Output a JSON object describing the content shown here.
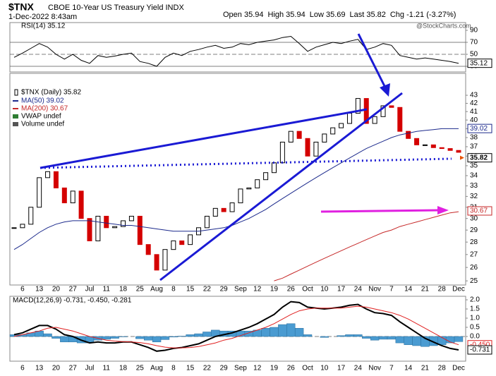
{
  "header": {
    "symbol": "$TNX",
    "name": "CBOE 10-Year US Treasury Yield INDX",
    "date": "1-Dec-2022 8:43am",
    "quote": [
      "Open 35.94",
      "High 35.94",
      "Low 35.69",
      "Last 35.82",
      "Chg -1.21 (-3.27%)"
    ],
    "source": "@StockCharts.com"
  },
  "chart_data": [
    {
      "type": "line",
      "title": "RSI(14) 35.12",
      "ylim": [
        20,
        100
      ],
      "yticks": [
        90,
        70,
        50,
        30
      ],
      "levels": [
        {
          "value": 70
        },
        {
          "value": 50,
          "dash": true
        },
        {
          "value": 30
        }
      ],
      "markers": [
        {
          "value": 35.12,
          "color": "#000"
        }
      ],
      "series": [
        {
          "name": "RSI",
          "color": "#000",
          "values": [
            45,
            52,
            60,
            68,
            62,
            50,
            42,
            50,
            40,
            35,
            48,
            45,
            47,
            50,
            52,
            38,
            35,
            30,
            45,
            52,
            48,
            55,
            58,
            62,
            65,
            60,
            62,
            68,
            66,
            70,
            72,
            74,
            78,
            80,
            68,
            55,
            62,
            66,
            70,
            68,
            72,
            75,
            58,
            62,
            68,
            65,
            48,
            45,
            42,
            44,
            42,
            40,
            38,
            35
          ]
        }
      ]
    },
    {
      "type": "candlestick",
      "title": "$TNX (Daily) 35.82",
      "log_scale": true,
      "ylim": [
        24.7,
        43.9
      ],
      "yticks": [
        25,
        26,
        27,
        28,
        29,
        30,
        31,
        32,
        33,
        34,
        35,
        36,
        37,
        38,
        39,
        40,
        41,
        42,
        43
      ],
      "categories": [
        null,
        "6",
        null,
        "13",
        null,
        "20",
        null,
        "27",
        null,
        "Jul",
        null,
        "11",
        null,
        "18",
        null,
        "25",
        null,
        "Aug",
        null,
        "8",
        null,
        "15",
        null,
        "22",
        null,
        "29",
        null,
        "Sep",
        null,
        "12",
        null,
        "19",
        null,
        "26",
        null,
        "Oct",
        null,
        "10",
        null,
        "17",
        null,
        "24",
        null,
        "Nov",
        null,
        "7",
        null,
        "14",
        null,
        "21",
        null,
        "28",
        null,
        "Dec"
      ],
      "values": [
        29.2,
        29.5,
        31.0,
        33.8,
        34.4,
        32.8,
        31.4,
        32.5,
        30.0,
        28.1,
        30.2,
        29.2,
        29.3,
        29.8,
        30.2,
        27.8,
        27.0,
        25.8,
        27.4,
        28.1,
        27.8,
        28.6,
        29.2,
        30.2,
        30.9,
        30.6,
        31.4,
        32.7,
        32.8,
        33.6,
        34.3,
        35.3,
        37.5,
        38.7,
        37.9,
        36.0,
        37.5,
        38.4,
        39.1,
        39.6,
        40.8,
        42.6,
        39.6,
        40.4,
        41.7,
        41.5,
        38.7,
        37.9,
        37.2,
        37.2,
        36.9,
        36.8,
        36.6,
        36.4
      ],
      "up_color": "#000",
      "down_color": "#d40000",
      "series": [
        {
          "name": "MA(50) 39.02",
          "color": "#1c2a8c",
          "values": [
            27.4,
            27.8,
            28.3,
            28.8,
            29.2,
            29.5,
            29.7,
            29.8,
            29.8,
            29.8,
            29.7,
            29.6,
            29.5,
            29.4,
            29.4,
            29.3,
            29.2,
            29.1,
            29.0,
            28.9,
            28.9,
            28.9,
            28.9,
            29.0,
            29.1,
            29.2,
            29.4,
            29.7,
            30.0,
            30.4,
            30.8,
            31.3,
            31.8,
            32.3,
            32.8,
            33.3,
            33.8,
            34.3,
            34.8,
            35.3,
            35.8,
            36.3,
            36.8,
            37.2,
            37.6,
            38.0,
            38.3,
            38.5,
            38.7,
            38.8,
            38.9,
            39.0,
            39.0,
            39.0
          ]
        },
        {
          "name": "MA(200) 30.67",
          "color": "#c62828",
          "values": [
            null,
            null,
            null,
            null,
            null,
            null,
            null,
            null,
            null,
            null,
            null,
            null,
            null,
            null,
            null,
            null,
            null,
            null,
            null,
            null,
            null,
            null,
            null,
            null,
            null,
            null,
            null,
            null,
            null,
            null,
            null,
            25.0,
            25.2,
            25.5,
            25.8,
            26.1,
            26.4,
            26.7,
            27.0,
            27.3,
            27.6,
            27.9,
            28.2,
            28.5,
            28.8,
            29.0,
            29.3,
            29.5,
            29.7,
            29.9,
            30.1,
            30.3,
            30.5,
            30.6
          ]
        }
      ],
      "legend_extra": [
        {
          "name": "VWAP undef",
          "color": "#2e7d32"
        },
        {
          "name": "Volume undef",
          "color": "#555"
        }
      ],
      "markers": [
        {
          "value": 39.02,
          "color": "#1c2a8c"
        },
        {
          "value": 35.82,
          "color": "#000"
        },
        {
          "value": 30.67,
          "color": "#c62828"
        }
      ]
    },
    {
      "type": "macd",
      "title": "MACD(12,26,9) -0.731, -0.450, -0.281",
      "ylim": [
        -1.25,
        2.1
      ],
      "yticks": [
        {
          "value": 2.0,
          "label": "2.0"
        },
        {
          "value": 1.5,
          "label": "1.5"
        },
        {
          "value": 1.0,
          "label": "1.0"
        },
        {
          "value": 0.5,
          "label": "0.5"
        },
        {
          "value": 0,
          "label": "0.0"
        }
      ],
      "levels": [
        {
          "value": 0,
          "dash": true
        }
      ],
      "categories": [
        null,
        "6",
        null,
        "13",
        null,
        "20",
        null,
        "27",
        null,
        "Jul",
        null,
        "11",
        null,
        "18",
        null,
        "25",
        null,
        "Aug",
        null,
        "8",
        null,
        "15",
        null,
        "22",
        null,
        "29",
        null,
        "Sep",
        null,
        "12",
        null,
        "19",
        null,
        "26",
        null,
        "Oct",
        null,
        "10",
        null,
        "17",
        null,
        "24",
        null,
        "Nov",
        null,
        "7",
        null,
        "14",
        null,
        "21",
        null,
        "28",
        null,
        "Dec"
      ],
      "histogram": {
        "color": "#4a9bd1",
        "values": [
          0.1,
          0.1,
          0.2,
          0.3,
          0.15,
          -0.1,
          -0.3,
          -0.3,
          -0.35,
          -0.35,
          -0.2,
          -0.15,
          -0.1,
          -0.02,
          0.0,
          -0.12,
          -0.2,
          -0.3,
          -0.17,
          -0.03,
          0.02,
          0.1,
          0.15,
          0.25,
          0.35,
          0.3,
          0.3,
          0.3,
          0.3,
          0.35,
          0.45,
          0.5,
          0.65,
          0.7,
          0.45,
          0.1,
          0.0,
          -0.05,
          0.0,
          0.05,
          0.1,
          0.1,
          -0.1,
          -0.2,
          -0.15,
          -0.15,
          -0.35,
          -0.45,
          -0.5,
          -0.55,
          -0.5,
          -0.45,
          -0.35,
          -0.28
        ]
      },
      "series": [
        {
          "name": "MACD",
          "color": "#000",
          "values": [
            0.1,
            0.2,
            0.4,
            0.6,
            0.6,
            0.4,
            0.1,
            0.0,
            -0.2,
            -0.35,
            -0.3,
            -0.35,
            -0.35,
            -0.3,
            -0.3,
            -0.45,
            -0.6,
            -0.8,
            -0.75,
            -0.65,
            -0.6,
            -0.5,
            -0.4,
            -0.2,
            0.0,
            0.1,
            0.2,
            0.35,
            0.5,
            0.7,
            0.95,
            1.2,
            1.6,
            1.9,
            1.85,
            1.6,
            1.55,
            1.5,
            1.55,
            1.6,
            1.7,
            1.75,
            1.5,
            1.3,
            1.25,
            1.15,
            0.8,
            0.5,
            0.2,
            -0.1,
            -0.3,
            -0.5,
            -0.65,
            -0.73
          ]
        },
        {
          "name": "Signal",
          "color": "#e02020",
          "values": [
            0.0,
            0.1,
            0.2,
            0.3,
            0.45,
            0.5,
            0.4,
            0.3,
            0.15,
            0.0,
            -0.1,
            -0.2,
            -0.25,
            -0.28,
            -0.3,
            -0.33,
            -0.4,
            -0.5,
            -0.58,
            -0.62,
            -0.62,
            -0.6,
            -0.55,
            -0.45,
            -0.35,
            -0.2,
            -0.1,
            0.05,
            0.2,
            0.35,
            0.5,
            0.7,
            0.95,
            1.2,
            1.4,
            1.5,
            1.55,
            1.55,
            1.55,
            1.55,
            1.6,
            1.65,
            1.6,
            1.5,
            1.4,
            1.3,
            1.15,
            0.95,
            0.7,
            0.45,
            0.2,
            -0.05,
            -0.3,
            -0.45
          ]
        }
      ],
      "markers": [
        {
          "value": -0.45,
          "label": "-0.450",
          "color": "#e02020"
        },
        {
          "value": -0.731,
          "label": "-0.731",
          "color": "#000"
        }
      ]
    }
  ]
}
